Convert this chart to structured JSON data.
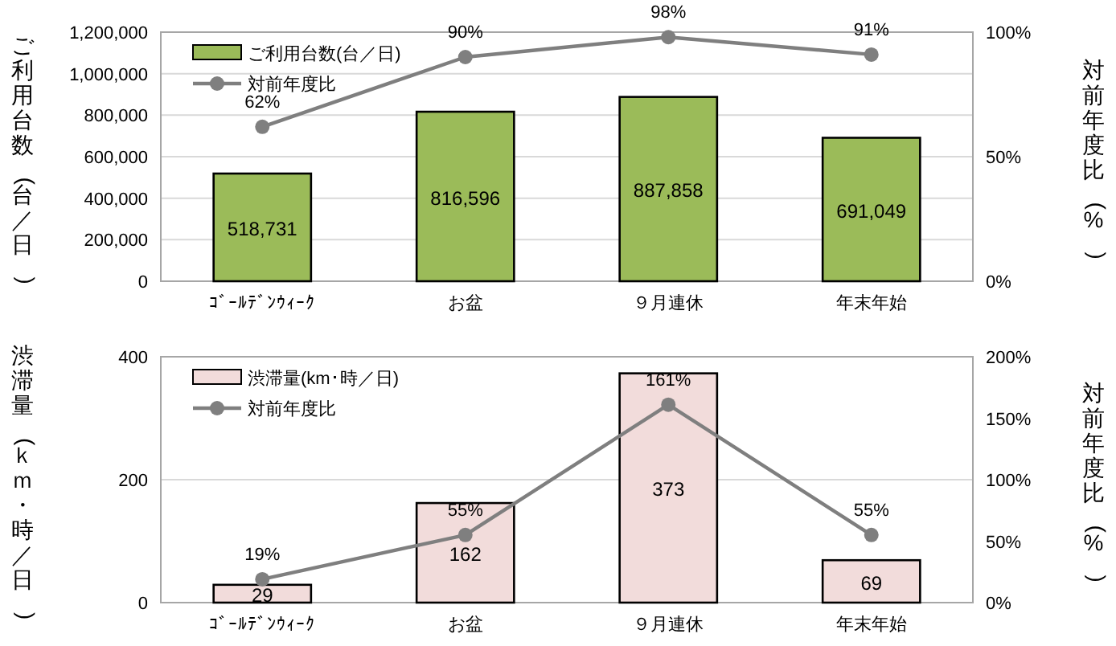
{
  "chart_data": [
    {
      "type": "bar",
      "categories": [
        "ｺﾞｰﾙﾃﾞﾝｳｨｰｸ",
        "お盆",
        "９月連休",
        "年末年始"
      ],
      "ylabel": "ご利用台数(台／日)",
      "y2label": "対前年度比(%)",
      "ylim": [
        0,
        1200000
      ],
      "yticks": [
        {
          "value": 0,
          "label": "0"
        },
        {
          "value": 200000,
          "label": "200,000"
        },
        {
          "value": 400000,
          "label": "400,000"
        },
        {
          "value": 600000,
          "label": "600,000"
        },
        {
          "value": 800000,
          "label": "800,000"
        },
        {
          "value": 1000000,
          "label": "1,000,000"
        },
        {
          "value": 1200000,
          "label": "1,200,000"
        }
      ],
      "y2lim": [
        0,
        100
      ],
      "y2ticks": [
        {
          "value": 0,
          "label": "0%"
        },
        {
          "value": 50,
          "label": "50%"
        },
        {
          "value": 100,
          "label": "100%"
        }
      ],
      "grid": "y",
      "legend": "top left",
      "series": [
        {
          "name": "ご利用台数(台／日)",
          "color": "#9bbb59",
          "values": [
            518731,
            816596,
            887858,
            691049
          ],
          "value_labels": [
            "518,731",
            "816,596",
            "887,858",
            "691,049"
          ]
        },
        {
          "name": "対前年度比",
          "type": "line",
          "axis": "y2",
          "color": "#7f7f7f",
          "marker": "circle",
          "values": [
            62,
            90,
            98,
            91
          ],
          "value_labels": [
            "62%",
            "90%",
            "98%",
            "91%"
          ]
        }
      ]
    },
    {
      "type": "bar",
      "categories": [
        "ｺﾞｰﾙﾃﾞﾝｳｨｰｸ",
        "お盆",
        "９月連休",
        "年末年始"
      ],
      "ylabel": "渋滞量(ｋｍ・時／日)",
      "y2label": "対前年度比(%)",
      "ylim": [
        0,
        400
      ],
      "yticks": [
        0,
        200,
        400
      ],
      "y2lim": [
        0,
        200
      ],
      "y2ticks": [
        {
          "value": 0,
          "label": "0%"
        },
        {
          "value": 50,
          "label": "50%"
        },
        {
          "value": 100,
          "label": "100%"
        },
        {
          "value": 150,
          "label": "150%"
        },
        {
          "value": 200,
          "label": "200%"
        }
      ],
      "grid": "y",
      "legend": "top left",
      "series": [
        {
          "name": "渋滞量(km･時／日)",
          "color": "#f2dcdb",
          "values": [
            29,
            162,
            373,
            69
          ],
          "value_labels": [
            "29",
            "162",
            "373",
            "69"
          ]
        },
        {
          "name": "対前年度比",
          "type": "line",
          "axis": "y2",
          "color": "#7f7f7f",
          "marker": "circle",
          "values": [
            19,
            55,
            161,
            55
          ],
          "value_labels": [
            "19%",
            "55%",
            "161%",
            "55%"
          ]
        }
      ]
    }
  ]
}
